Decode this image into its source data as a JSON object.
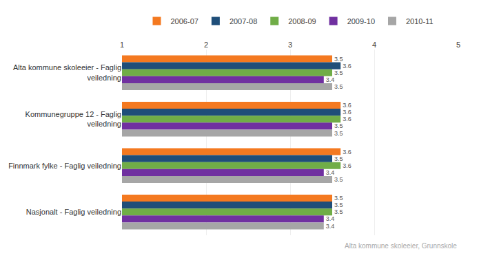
{
  "chart_data": {
    "type": "bar",
    "orientation": "horizontal",
    "categories": [
      "Alta kommune skoleeier - Faglig\nveiledning",
      "Kommunegruppe 12 - Faglig\nveiledning",
      "Finnmark fylke - Faglig veiledning",
      "Nasjonalt - Faglig veiledning"
    ],
    "series": [
      {
        "name": "2006-07",
        "color": "#F47920",
        "values": [
          3.5,
          3.6,
          3.6,
          3.5
        ]
      },
      {
        "name": "2007-08",
        "color": "#1F4E79",
        "values": [
          3.6,
          3.6,
          3.5,
          3.5
        ]
      },
      {
        "name": "2008-09",
        "color": "#70AD47",
        "values": [
          3.5,
          3.6,
          3.6,
          3.5
        ]
      },
      {
        "name": "2009-10",
        "color": "#7030A0",
        "values": [
          3.4,
          3.5,
          3.4,
          3.4
        ]
      },
      {
        "name": "2010-11",
        "color": "#A6A6A6",
        "values": [
          3.5,
          3.5,
          3.5,
          3.4
        ]
      }
    ],
    "xlim": [
      1,
      5
    ],
    "xticks": [
      1,
      2,
      3,
      4,
      5
    ],
    "grid": true,
    "legend": "top",
    "data_labels": true,
    "annotations": [
      "Alta kommune skoleeier, Grunnskole"
    ]
  }
}
